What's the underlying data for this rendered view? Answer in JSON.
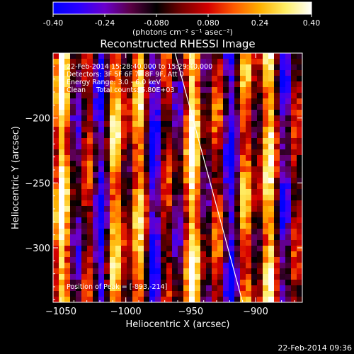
{
  "colorbar": {
    "ticks": [
      -0.4,
      -0.24,
      -0.08,
      0.08,
      0.24,
      0.4
    ],
    "tick_labels": [
      "-0.40",
      "-0.24",
      "-0.080",
      "0.080",
      "0.24",
      "0.40"
    ],
    "units_label": "(photons cm⁻² s⁻¹ asec⁻²)",
    "stops": [
      "#0000ff",
      "#2b00ff",
      "#6a00cc",
      "#5a0044",
      "#000000",
      "#7a0000",
      "#d40000",
      "#ff5a00",
      "#ffb000",
      "#ffee66",
      "#ffffff"
    ]
  },
  "chart_data": {
    "type": "heatmap",
    "title": "Reconstructed RHESSI Image",
    "xlabel": "Heliocentric X (arcsec)",
    "ylabel": "Heliocentric Y (arcsec)",
    "xlim": [
      -1056,
      -864
    ],
    "ylim": [
      -342,
      -150
    ],
    "x_ticks": [
      -1050,
      -1000,
      -950,
      -900
    ],
    "x_tick_labels": [
      "−1050",
      "−1000",
      "−950",
      "−900"
    ],
    "y_ticks": [
      -200,
      -250,
      -300
    ],
    "y_tick_labels": [
      "−200",
      "−250",
      "−300"
    ],
    "peak_position": [
      -893,
      -214
    ],
    "limb_line": [
      [
        -962,
        -150
      ],
      [
        -910,
        -342
      ]
    ],
    "info_lines": [
      "22-Feb-2014 15:28:40.000 to 15:29:40.000",
      "Detectors: 3F 5F 6F 7F 8F 9F, Att 0",
      "Energy Range: 3.0 - 6.0 keV",
      "Clean     Total counts: 5.80E+03"
    ],
    "peak_label": "Position of Peak = [-893,-214]"
  },
  "timestamp": "22-Feb-2014 09:36"
}
